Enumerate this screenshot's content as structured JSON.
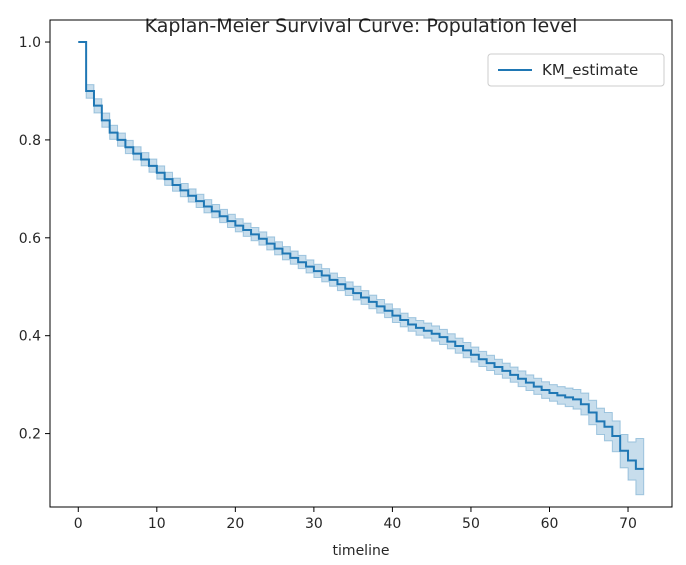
{
  "chart_data": {
    "type": "line",
    "title": "Kaplan-Meier Survival Curve: Population level",
    "xlabel": "timeline",
    "ylabel": "",
    "xlim": [
      -3.6,
      75.6
    ],
    "ylim": [
      0.05,
      1.045
    ],
    "xticks": [
      0,
      10,
      20,
      30,
      40,
      50,
      60,
      70
    ],
    "yticks": [
      0.2,
      0.4,
      0.6,
      0.8,
      1.0
    ],
    "ytick_labels": [
      "0.2",
      "0.4",
      "0.6",
      "0.8",
      "1.0"
    ],
    "grid": false,
    "legend": {
      "position": "top-right",
      "entries": [
        "KM_estimate"
      ]
    },
    "colors": {
      "line": "#1f77b4",
      "band": "#1f77b4",
      "axis": "#000000"
    },
    "series": [
      {
        "name": "KM_estimate",
        "step": "post",
        "x": [
          0,
          1,
          2,
          3,
          4,
          5,
          6,
          7,
          8,
          9,
          10,
          11,
          12,
          13,
          14,
          15,
          16,
          17,
          18,
          19,
          20,
          21,
          22,
          23,
          24,
          25,
          26,
          27,
          28,
          29,
          30,
          31,
          32,
          33,
          34,
          35,
          36,
          37,
          38,
          39,
          40,
          41,
          42,
          43,
          44,
          45,
          46,
          47,
          48,
          49,
          50,
          51,
          52,
          53,
          54,
          55,
          56,
          57,
          58,
          59,
          60,
          61,
          62,
          63,
          64,
          65,
          66,
          67,
          68,
          69,
          70,
          71,
          72
        ],
        "y": [
          1.0,
          0.9,
          0.87,
          0.84,
          0.815,
          0.8,
          0.785,
          0.772,
          0.76,
          0.747,
          0.733,
          0.72,
          0.708,
          0.697,
          0.686,
          0.675,
          0.664,
          0.654,
          0.644,
          0.634,
          0.625,
          0.616,
          0.607,
          0.598,
          0.588,
          0.578,
          0.568,
          0.559,
          0.55,
          0.541,
          0.532,
          0.523,
          0.514,
          0.505,
          0.496,
          0.487,
          0.478,
          0.469,
          0.46,
          0.451,
          0.441,
          0.432,
          0.423,
          0.416,
          0.41,
          0.404,
          0.397,
          0.388,
          0.379,
          0.37,
          0.361,
          0.352,
          0.344,
          0.336,
          0.328,
          0.32,
          0.312,
          0.304,
          0.296,
          0.289,
          0.283,
          0.278,
          0.274,
          0.27,
          0.26,
          0.243,
          0.225,
          0.214,
          0.195,
          0.165,
          0.145,
          0.128,
          0.128
        ],
        "ci_lower": [
          1.0,
          0.885,
          0.855,
          0.826,
          0.801,
          0.787,
          0.772,
          0.759,
          0.747,
          0.734,
          0.72,
          0.707,
          0.695,
          0.684,
          0.673,
          0.662,
          0.651,
          0.641,
          0.631,
          0.621,
          0.612,
          0.603,
          0.594,
          0.585,
          0.575,
          0.565,
          0.555,
          0.546,
          0.537,
          0.528,
          0.519,
          0.51,
          0.501,
          0.492,
          0.482,
          0.473,
          0.464,
          0.455,
          0.446,
          0.437,
          0.427,
          0.418,
          0.409,
          0.401,
          0.395,
          0.389,
          0.382,
          0.373,
          0.364,
          0.355,
          0.346,
          0.337,
          0.329,
          0.321,
          0.313,
          0.305,
          0.296,
          0.288,
          0.28,
          0.272,
          0.266,
          0.26,
          0.255,
          0.25,
          0.238,
          0.218,
          0.198,
          0.185,
          0.163,
          0.13,
          0.105,
          0.075,
          0.075
        ],
        "ci_upper": [
          1.0,
          0.913,
          0.884,
          0.855,
          0.83,
          0.814,
          0.799,
          0.786,
          0.774,
          0.761,
          0.747,
          0.734,
          0.722,
          0.711,
          0.7,
          0.689,
          0.678,
          0.668,
          0.658,
          0.648,
          0.639,
          0.63,
          0.621,
          0.612,
          0.602,
          0.592,
          0.582,
          0.573,
          0.564,
          0.555,
          0.546,
          0.537,
          0.528,
          0.519,
          0.51,
          0.501,
          0.492,
          0.483,
          0.474,
          0.465,
          0.455,
          0.446,
          0.437,
          0.431,
          0.426,
          0.42,
          0.413,
          0.404,
          0.395,
          0.386,
          0.377,
          0.368,
          0.36,
          0.352,
          0.344,
          0.336,
          0.328,
          0.32,
          0.313,
          0.306,
          0.3,
          0.296,
          0.293,
          0.29,
          0.283,
          0.268,
          0.252,
          0.243,
          0.226,
          0.198,
          0.183,
          0.19,
          0.19
        ]
      }
    ]
  }
}
